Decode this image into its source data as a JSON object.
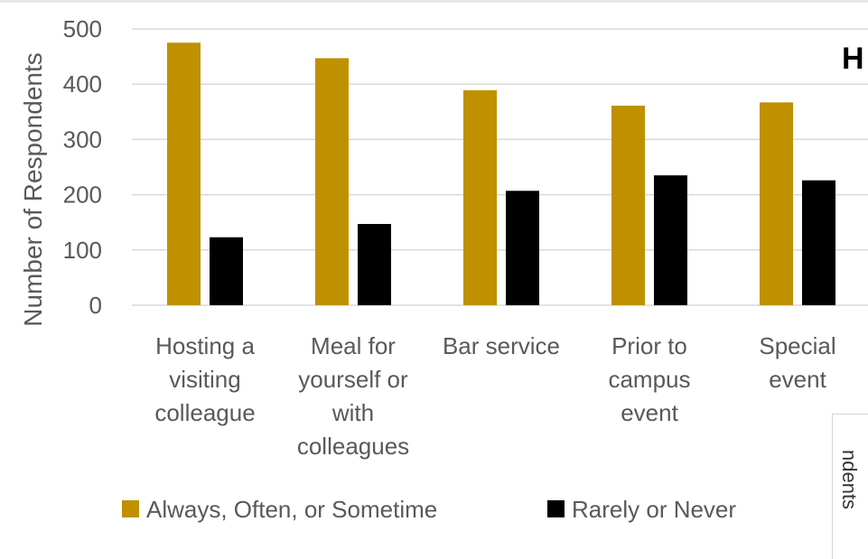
{
  "chart_data": {
    "type": "bar",
    "categories": [
      [
        "Hosting a",
        "visiting",
        "colleague"
      ],
      [
        "Meal for",
        "yourself or",
        "with",
        "colleagues"
      ],
      [
        "Bar service"
      ],
      [
        "Prior to",
        "campus",
        "event"
      ],
      [
        "Special",
        "event"
      ]
    ],
    "series": [
      {
        "name": "Always, Often, or Sometime",
        "values": [
          475,
          447,
          389,
          361,
          367
        ],
        "color": "#bf9000"
      },
      {
        "name": "Rarely or Never",
        "values": [
          123,
          147,
          207,
          235,
          226
        ],
        "color": "#000000"
      }
    ],
    "ylabel": "Number of Respondents",
    "ylim": [
      0,
      500
    ],
    "yticks": [
      0,
      100,
      200,
      300,
      400,
      500
    ],
    "grid": true,
    "legend": "bottom",
    "gridline_color": "#d9d9d9"
  },
  "side_title": "H",
  "side_panel_label": "ndents"
}
